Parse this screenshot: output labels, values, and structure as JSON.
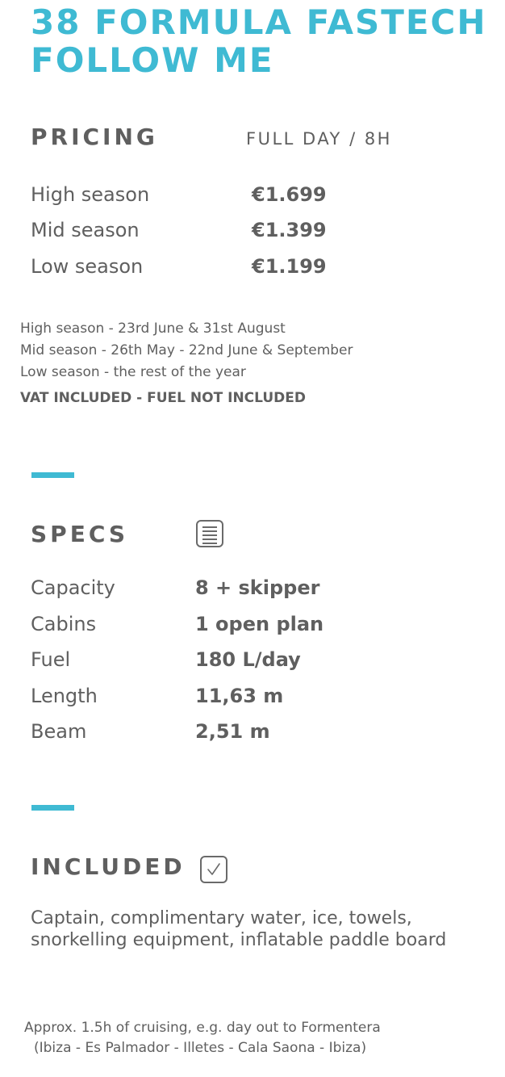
{
  "title": {
    "line1": "38 FORMULA FASTECH",
    "line2": "FOLLOW ME"
  },
  "pricing": {
    "heading": "PRICING",
    "subheading": "FULL DAY / 8H",
    "rows": [
      {
        "label": "High season",
        "value": "€1.699"
      },
      {
        "label": "Mid season",
        "value": "€1.399"
      },
      {
        "label": "Low season",
        "value": "€1.199"
      }
    ],
    "notes": [
      "High season - 23rd June & 31st August",
      "Mid season - 26th May - 22nd June & September",
      "Low season - the rest of the year"
    ],
    "vat_note": "VAT INCLUDED - FUEL NOT INCLUDED"
  },
  "specs": {
    "heading": "SPECS",
    "icon": "document-icon",
    "rows": [
      {
        "label": "Capacity",
        "value": "8 + skipper"
      },
      {
        "label": "Cabins",
        "value": "1 open plan"
      },
      {
        "label": "Fuel",
        "value": "180 L/day"
      },
      {
        "label": "Length",
        "value": "11,63 m"
      },
      {
        "label": "Beam",
        "value": "2,51 m"
      }
    ]
  },
  "included": {
    "heading": "INCLUDED",
    "icon": "checkbox-icon",
    "text": "Captain, complimentary water, ice, towels, snorkelling equipment, inflatable paddle board"
  },
  "footer": {
    "line1": "Approx. 1.5h of cruising, e.g. day out to Formentera",
    "line2": "(Ibiza - Es Palmador - Illetes - Cala Saona - Ibiza)"
  },
  "colors": {
    "accent": "#3fbad3",
    "text": "#5f5f5f"
  }
}
